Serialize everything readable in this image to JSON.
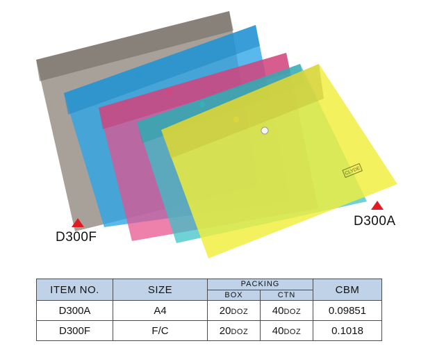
{
  "products": {
    "left_label": "D300F",
    "right_label": "D300A",
    "marker_color": "#e21b23",
    "folder_colors": [
      "#8a8278",
      "#2aa5e8",
      "#e8508c",
      "#37c0c6",
      "#f0ee3a"
    ],
    "brand_tag": "CLYDE"
  },
  "table": {
    "headers": {
      "item": "ITEM NO.",
      "size": "SIZE",
      "packing": "PACKING",
      "box": "BOX",
      "ctn": "CTN",
      "cbm": "CBM"
    },
    "rows": [
      {
        "item": "D300A",
        "size": "A4",
        "box_qty": "20",
        "box_unit": "DOZ",
        "ctn_qty": "40",
        "ctn_unit": "DOZ",
        "cbm": "0.09851"
      },
      {
        "item": "D300F",
        "size": "F/C",
        "box_qty": "20",
        "box_unit": "DOZ",
        "ctn_qty": "40",
        "ctn_unit": "DOZ",
        "cbm": "0.1018"
      }
    ]
  }
}
